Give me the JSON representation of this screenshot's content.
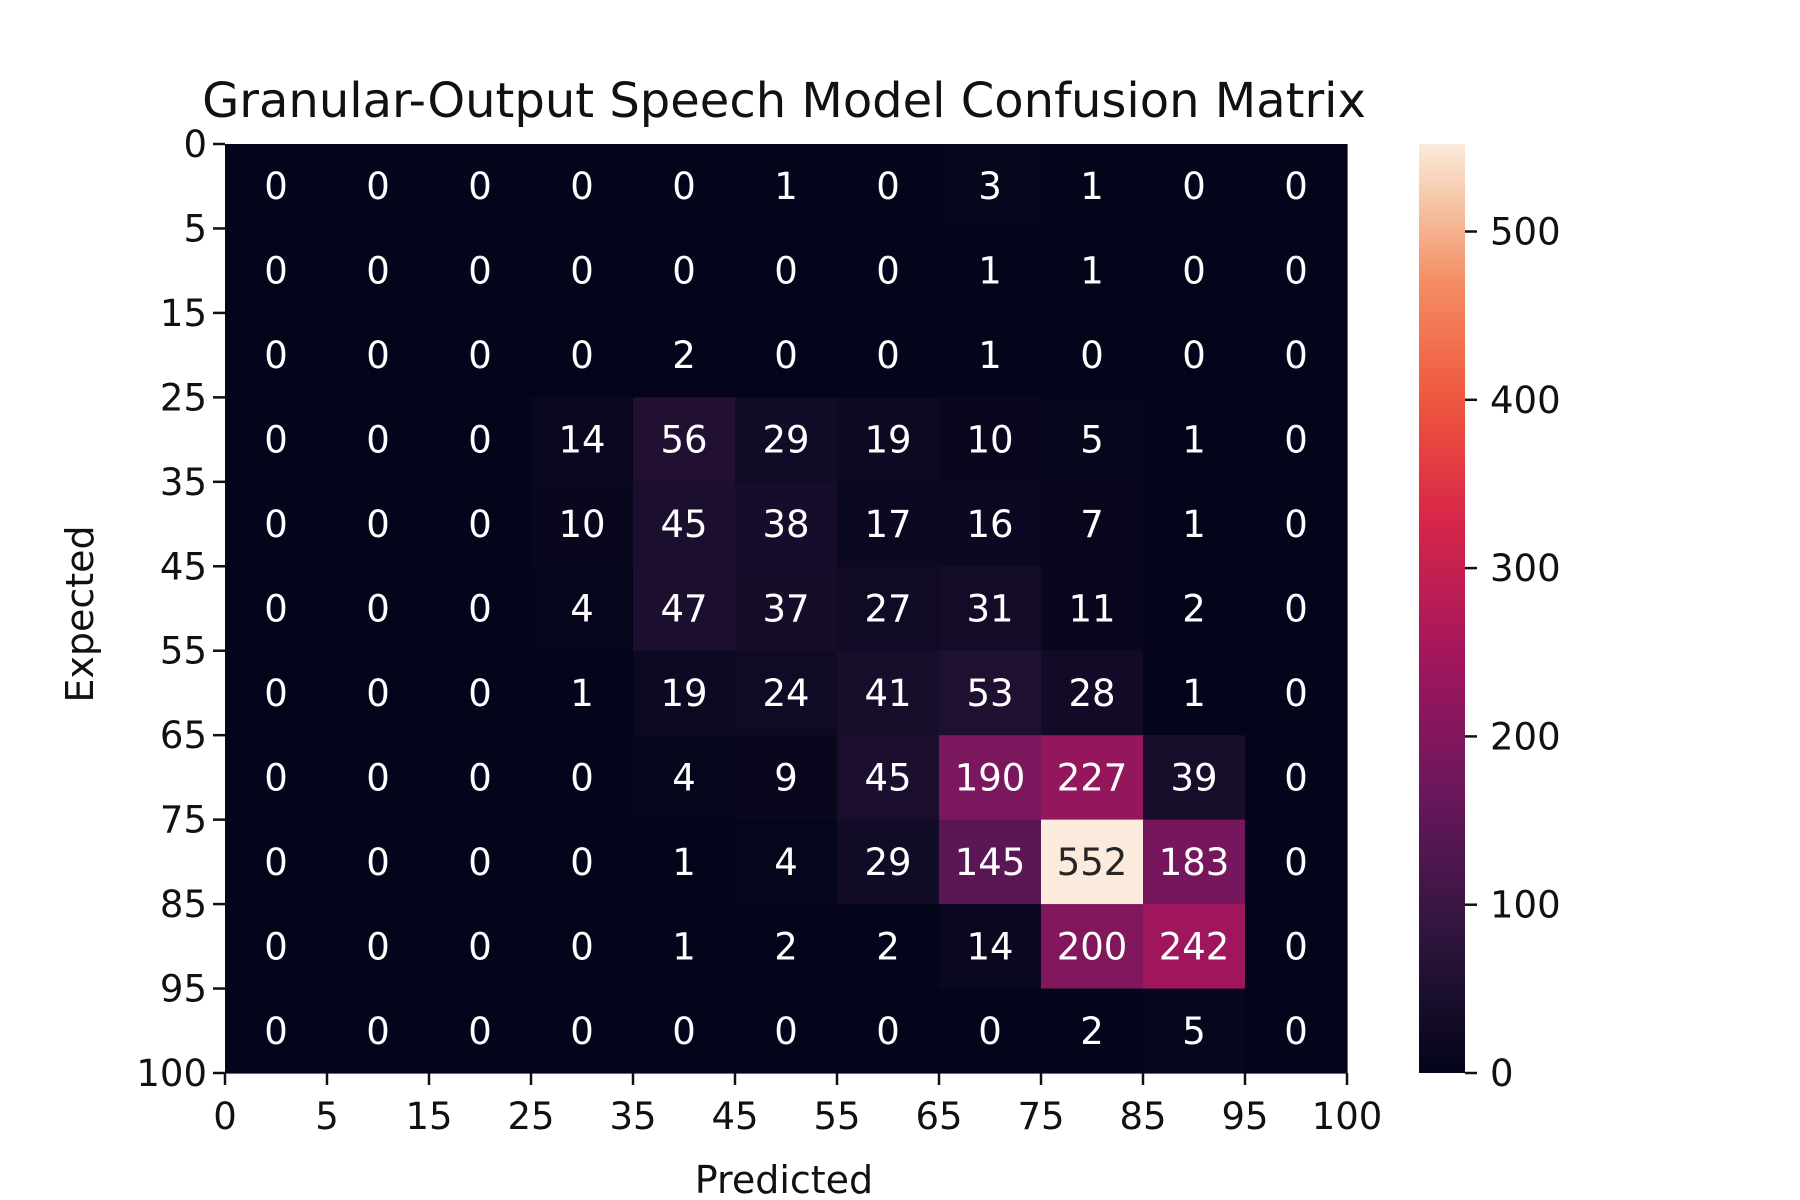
{
  "chart_data": {
    "type": "heatmap",
    "title": "Granular-Output Speech Model Confusion Matrix",
    "xlabel": "Predicted",
    "ylabel": "Expected",
    "x_ticks": [
      "0",
      "5",
      "15",
      "25",
      "35",
      "45",
      "55",
      "65",
      "75",
      "85",
      "95",
      "100"
    ],
    "y_ticks": [
      "0",
      "5",
      "15",
      "25",
      "35",
      "45",
      "55",
      "65",
      "75",
      "85",
      "95",
      "100"
    ],
    "values": [
      [
        0,
        0,
        0,
        0,
        0,
        1,
        0,
        3,
        1,
        0,
        0
      ],
      [
        0,
        0,
        0,
        0,
        0,
        0,
        0,
        1,
        1,
        0,
        0
      ],
      [
        0,
        0,
        0,
        0,
        2,
        0,
        0,
        1,
        0,
        0,
        0
      ],
      [
        0,
        0,
        0,
        14,
        56,
        29,
        19,
        10,
        5,
        1,
        0
      ],
      [
        0,
        0,
        0,
        10,
        45,
        38,
        17,
        16,
        7,
        1,
        0
      ],
      [
        0,
        0,
        0,
        4,
        47,
        37,
        27,
        31,
        11,
        2,
        0
      ],
      [
        0,
        0,
        0,
        1,
        19,
        24,
        41,
        53,
        28,
        1,
        0
      ],
      [
        0,
        0,
        0,
        0,
        4,
        9,
        45,
        190,
        227,
        39,
        0
      ],
      [
        0,
        0,
        0,
        0,
        1,
        4,
        29,
        145,
        552,
        183,
        0
      ],
      [
        0,
        0,
        0,
        0,
        1,
        2,
        2,
        14,
        200,
        242,
        0
      ],
      [
        0,
        0,
        0,
        0,
        0,
        0,
        0,
        0,
        2,
        5,
        0
      ]
    ],
    "colorbar": {
      "min": 0,
      "max": 552,
      "ticks": [
        "0",
        "100",
        "200",
        "300",
        "400",
        "500"
      ],
      "colormap": "rocket"
    },
    "annotations": "cell counts"
  }
}
